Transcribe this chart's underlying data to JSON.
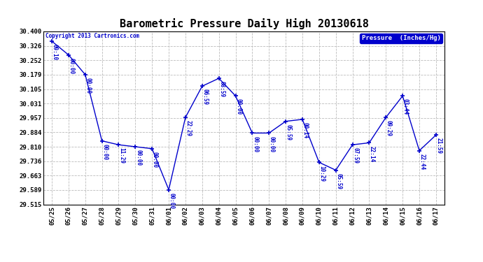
{
  "title": "Barometric Pressure Daily High 20130618",
  "copyright_text": "Copyright 2013 Cartronics.com",
  "legend_label": "Pressure  (Inches/Hg)",
  "x_labels": [
    "05/25",
    "05/26",
    "05/27",
    "05/28",
    "05/29",
    "05/30",
    "05/31",
    "06/01",
    "06/02",
    "06/03",
    "06/04",
    "06/05",
    "06/06",
    "06/07",
    "06/08",
    "06/09",
    "06/10",
    "06/11",
    "06/12",
    "06/13",
    "06/14",
    "06/15",
    "06/16",
    "06/17"
  ],
  "x_values": [
    0,
    1,
    2,
    3,
    4,
    5,
    6,
    7,
    8,
    9,
    10,
    11,
    12,
    13,
    14,
    15,
    16,
    17,
    18,
    19,
    20,
    21,
    22,
    23
  ],
  "y_values": [
    30.35,
    30.28,
    30.179,
    29.84,
    29.82,
    29.81,
    29.8,
    29.59,
    29.96,
    30.12,
    30.16,
    30.07,
    29.88,
    29.88,
    29.94,
    29.95,
    29.73,
    29.69,
    29.82,
    29.83,
    29.96,
    30.07,
    29.79,
    29.87
  ],
  "point_labels": [
    "09:10",
    "00:00",
    "00:00",
    "00:00",
    "11:29",
    "00:00",
    "00:00",
    "00:00",
    "22:29",
    "06:59",
    "08:59",
    "00:00",
    "00:00",
    "00:00",
    "05:59",
    "00:14",
    "10:29",
    "05:59",
    "07:59",
    "22:14",
    "09:29",
    "03:44",
    "22:44",
    "21:59"
  ],
  "ylim_min": 29.515,
  "ylim_max": 30.4,
  "yticks": [
    29.515,
    29.589,
    29.663,
    29.736,
    29.81,
    29.884,
    29.957,
    30.031,
    30.105,
    30.179,
    30.252,
    30.326,
    30.4
  ],
  "line_color": "#0000CC",
  "marker_color": "#0000CC",
  "bg_color": "#ffffff",
  "plot_bg_color": "#ffffff",
  "grid_color": "#bbbbbb",
  "title_color": "#000000",
  "label_color": "#0000CC",
  "legend_bg": "#0000CC",
  "legend_text_color": "#ffffff"
}
